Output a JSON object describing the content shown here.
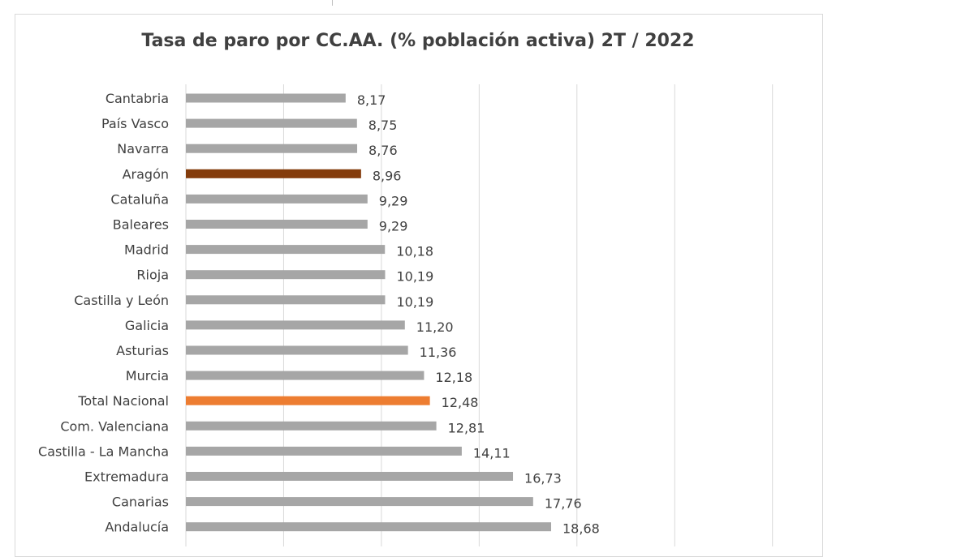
{
  "chart_data": {
    "type": "bar",
    "orientation": "horizontal",
    "title": "Tasa de paro por CC.AA. (% población activa) 2T / 2022",
    "xlabel": "",
    "ylabel": "",
    "xlim": [
      0,
      30
    ],
    "grid": true,
    "legend": "none",
    "categories": [
      "Cantabria",
      "País Vasco",
      "Navarra",
      "Aragón",
      "Cataluña",
      "Baleares",
      "Madrid",
      "Rioja",
      "Castilla y León",
      "Galicia",
      "Asturias",
      "Murcia",
      "Total Nacional",
      "Com. Valenciana",
      "Castilla - La Mancha",
      "Extremadura",
      "Canarias",
      "Andalucía"
    ],
    "values": [
      8.17,
      8.75,
      8.76,
      8.96,
      9.29,
      9.29,
      10.18,
      10.19,
      10.19,
      11.2,
      11.36,
      12.18,
      12.48,
      12.81,
      14.11,
      16.73,
      17.76,
      18.68
    ],
    "value_labels": [
      "8,17",
      "8,75",
      "8,76",
      "8,96",
      "9,29",
      "9,29",
      "10,18",
      "10,19",
      "10,19",
      "11,20",
      "11,36",
      "12,18",
      "12,48",
      "12,81",
      "14,11",
      "16,73",
      "17,76",
      "18,68"
    ],
    "colors": {
      "default": "#a6a6a6",
      "Aragón": "#843c0c",
      "Total Nacional": "#ed7d31"
    },
    "gridline_color": "#d9d9d9",
    "text_color": "#404040"
  }
}
